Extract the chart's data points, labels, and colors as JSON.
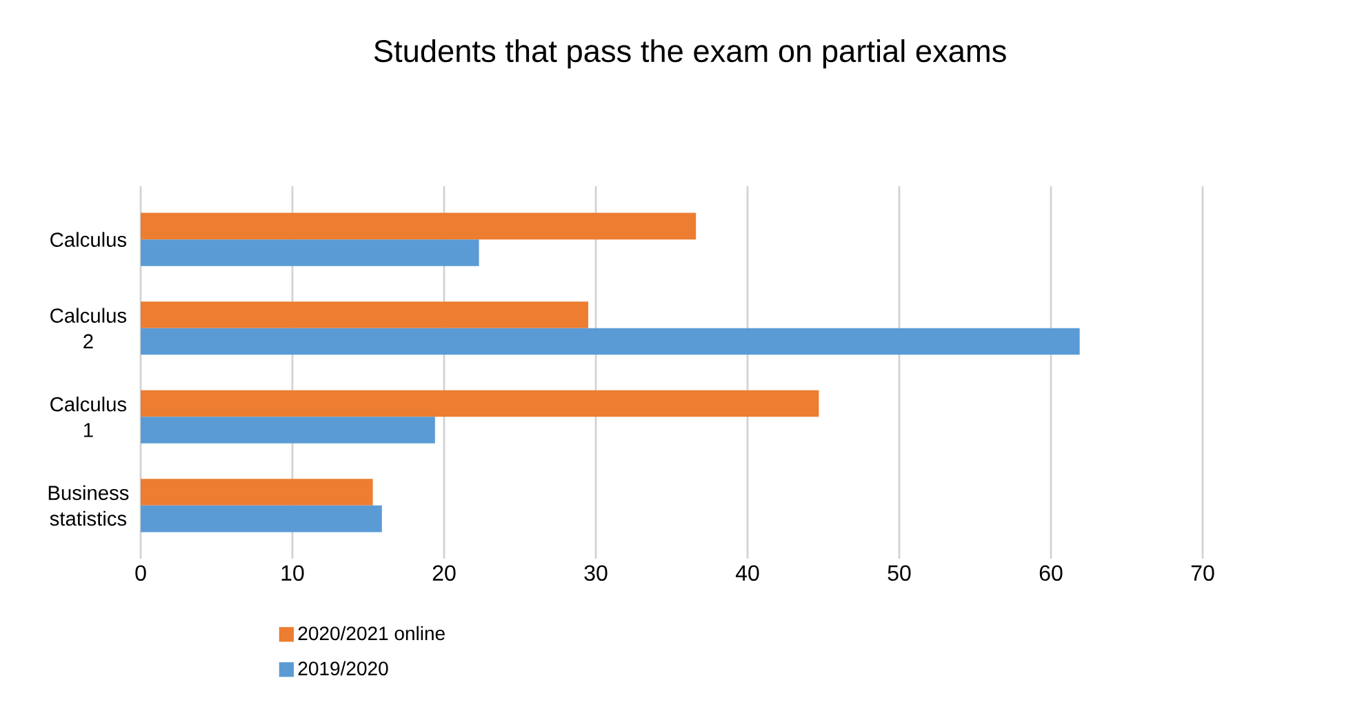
{
  "chart_data": {
    "type": "bar",
    "orientation": "horizontal",
    "title": "Students that pass the exam on partial exams",
    "categories": [
      "Calculus",
      "Calculus 2",
      "Calculus 1",
      "Business statistics"
    ],
    "series": [
      {
        "name": "2020/2021 online",
        "color": "#ed7d31",
        "values": [
          36.6,
          29.5,
          44.7,
          15.3
        ]
      },
      {
        "name": "2019/2020",
        "color": "#5b9bd5",
        "values": [
          22.3,
          61.9,
          19.4,
          15.9
        ]
      }
    ],
    "xlim": [
      0,
      70
    ],
    "xticks": [
      0,
      10,
      20,
      30,
      40,
      50,
      60,
      70
    ],
    "grid": "x",
    "legend": "bottom"
  }
}
